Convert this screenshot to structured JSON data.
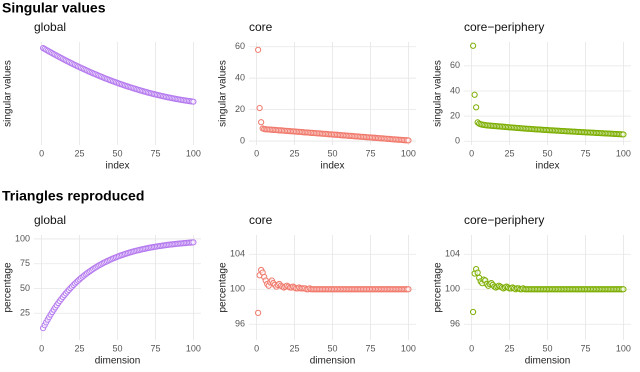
{
  "headings": [
    "Singular values",
    "Triangles reproduced"
  ],
  "chart_data": [
    {
      "type": "scatter",
      "title": "global",
      "xlabel": "index",
      "ylabel": "singular values",
      "color": "#b57aef",
      "grid": true,
      "xlim": [
        -5,
        105
      ],
      "ylim": [
        0,
        170
      ],
      "xticks": [
        0,
        25,
        50,
        75,
        100
      ],
      "x": [
        1,
        2,
        3,
        4,
        5,
        6,
        7,
        8,
        9,
        10,
        11,
        12,
        13,
        14,
        15,
        16,
        17,
        18,
        19,
        20,
        21,
        22,
        23,
        24,
        25,
        26,
        27,
        28,
        29,
        30,
        31,
        32,
        33,
        34,
        35,
        36,
        37,
        38,
        39,
        40,
        41,
        42,
        43,
        44,
        45,
        46,
        47,
        48,
        49,
        50,
        51,
        52,
        53,
        54,
        55,
        56,
        57,
        58,
        59,
        60,
        61,
        62,
        63,
        64,
        65,
        66,
        67,
        68,
        69,
        70,
        71,
        72,
        73,
        74,
        75,
        76,
        77,
        78,
        79,
        80,
        81,
        82,
        83,
        84,
        85,
        86,
        87,
        88,
        89,
        90,
        91,
        92,
        93,
        94,
        95,
        96,
        97,
        98,
        99,
        100
      ],
      "values": [
        160,
        158.6,
        157.1,
        155.7,
        154.3,
        152.9,
        151.5,
        150.1,
        148.8,
        147.4,
        146.1,
        144.7,
        143.4,
        142.1,
        140.8,
        139.5,
        138.2,
        137,
        135.7,
        134.5,
        133.2,
        132,
        130.8,
        129.6,
        128.4,
        127.3,
        126.1,
        125,
        123.8,
        122.7,
        121.5,
        120.4,
        119.3,
        118.2,
        117.2,
        116.1,
        115.1,
        114,
        113,
        112,
        110.9,
        109.9,
        109,
        108,
        107,
        106.1,
        105.1,
        104.2,
        103.3,
        102.4,
        101.5,
        100.6,
        99.8,
        98.9,
        98,
        97.2,
        96.4,
        95.6,
        94.8,
        94,
        93.2,
        92.4,
        91.7,
        90.9,
        90.1,
        89.4,
        88.7,
        88,
        87.3,
        86.6,
        85.9,
        85.3,
        84.6,
        84,
        83.4,
        82.8,
        82.2,
        81.6,
        81,
        80.4,
        79.9,
        79.3,
        78.8,
        78.3,
        77.8,
        77.3,
        76.8,
        76.3,
        75.8,
        75.4,
        75,
        74.5,
        74.1,
        73.7,
        73.3,
        72.9,
        72.6,
        72.2,
        71.9,
        71.5
      ]
    },
    {
      "type": "scatter",
      "title": "core",
      "xlabel": "index",
      "ylabel": "singular values",
      "color": "#f0796c",
      "grid": true,
      "xlim": [
        -5,
        105
      ],
      "ylim": [
        -2.5,
        63
      ],
      "xticks": [
        0,
        25,
        50,
        75,
        100
      ],
      "yticks": [
        0,
        20,
        40,
        60
      ],
      "x": [
        1,
        2,
        3,
        4,
        5,
        6,
        7,
        8,
        9,
        10,
        11,
        12,
        13,
        14,
        15,
        16,
        17,
        18,
        19,
        20,
        21,
        22,
        23,
        24,
        25,
        26,
        27,
        28,
        29,
        30,
        31,
        32,
        33,
        34,
        35,
        36,
        37,
        38,
        39,
        40,
        41,
        42,
        43,
        44,
        45,
        46,
        47,
        48,
        49,
        50,
        51,
        52,
        53,
        54,
        55,
        56,
        57,
        58,
        59,
        60,
        61,
        62,
        63,
        64,
        65,
        66,
        67,
        68,
        69,
        70,
        71,
        72,
        73,
        74,
        75,
        76,
        77,
        78,
        79,
        80,
        81,
        82,
        83,
        84,
        85,
        86,
        87,
        88,
        89,
        90,
        91,
        92,
        93,
        94,
        95,
        96,
        97,
        98,
        99,
        100
      ],
      "values": [
        58,
        21,
        12,
        8,
        7.6,
        7.5,
        7.4,
        7.4,
        7.3,
        7.2,
        7.1,
        7.1,
        7.0,
        6.9,
        6.8,
        6.8,
        6.7,
        6.6,
        6.5,
        6.5,
        6.4,
        6.3,
        6.2,
        6.2,
        6.1,
        6.0,
        5.9,
        5.9,
        5.8,
        5.7,
        5.6,
        5.5,
        5.5,
        5.4,
        5.3,
        5.2,
        5.2,
        5.1,
        5.0,
        4.9,
        4.9,
        4.8,
        4.7,
        4.6,
        4.6,
        4.5,
        4.4,
        4.3,
        4.3,
        4.2,
        4.1,
        4.0,
        4.0,
        3.9,
        3.8,
        3.7,
        3.6,
        3.6,
        3.5,
        3.4,
        3.3,
        3.3,
        3.2,
        3.1,
        3.0,
        3.0,
        2.9,
        2.8,
        2.7,
        2.7,
        2.6,
        2.5,
        2.4,
        2.4,
        2.3,
        2.2,
        2.1,
        2.1,
        2.0,
        1.9,
        1.8,
        1.7,
        1.7,
        1.6,
        1.5,
        1.4,
        1.4,
        1.3,
        1.2,
        1.1,
        1.1,
        1.0,
        0.9,
        0.8,
        0.8,
        0.7,
        0.6,
        0.5,
        0.5,
        0.4
      ]
    },
    {
      "type": "scatter",
      "title": "core−periphery",
      "xlabel": "index",
      "ylabel": "singular values",
      "color": "#7cae00",
      "grid": true,
      "xlim": [
        -5,
        105
      ],
      "ylim": [
        -3,
        79
      ],
      "xticks": [
        0,
        25,
        50,
        75,
        100
      ],
      "yticks": [
        0,
        20,
        40,
        60
      ],
      "x": [
        1,
        2,
        3,
        4,
        5,
        6,
        7,
        8,
        9,
        10,
        11,
        12,
        13,
        14,
        15,
        16,
        17,
        18,
        19,
        20,
        21,
        22,
        23,
        24,
        25,
        26,
        27,
        28,
        29,
        30,
        31,
        32,
        33,
        34,
        35,
        36,
        37,
        38,
        39,
        40,
        41,
        42,
        43,
        44,
        45,
        46,
        47,
        48,
        49,
        50,
        51,
        52,
        53,
        54,
        55,
        56,
        57,
        58,
        59,
        60,
        61,
        62,
        63,
        64,
        65,
        66,
        67,
        68,
        69,
        70,
        71,
        72,
        73,
        74,
        75,
        76,
        77,
        78,
        79,
        80,
        81,
        82,
        83,
        84,
        85,
        86,
        87,
        88,
        89,
        90,
        91,
        92,
        93,
        94,
        95,
        96,
        97,
        98,
        99,
        100
      ],
      "values": [
        76,
        37,
        27,
        15,
        14,
        13.5,
        13.2,
        13.0,
        12.8,
        12.6,
        12.5,
        12.4,
        12.3,
        12.2,
        12.1,
        12.0,
        11.9,
        11.8,
        11.7,
        11.6,
        11.5,
        11.4,
        11.3,
        11.2,
        11.1,
        11.0,
        10.9,
        10.8,
        10.7,
        10.6,
        10.5,
        10.4,
        10.3,
        10.2,
        10.1,
        10.0,
        9.9,
        9.9,
        9.8,
        9.7,
        9.6,
        9.5,
        9.4,
        9.4,
        9.3,
        9.2,
        9.1,
        9.0,
        9.0,
        8.9,
        8.8,
        8.7,
        8.7,
        8.6,
        8.5,
        8.4,
        8.4,
        8.3,
        8.2,
        8.1,
        8.1,
        8.0,
        7.9,
        7.9,
        7.8,
        7.7,
        7.6,
        7.6,
        7.5,
        7.4,
        7.4,
        7.3,
        7.2,
        7.2,
        7.1,
        7.0,
        7.0,
        6.9,
        6.8,
        6.8,
        6.7,
        6.6,
        6.6,
        6.5,
        6.4,
        6.4,
        6.3,
        6.2,
        6.2,
        6.1,
        6.0,
        6.0,
        5.9,
        5.8,
        5.8,
        5.7,
        5.6,
        5.6,
        5.5,
        5.4
      ]
    },
    {
      "type": "scatter",
      "title": "global",
      "xlabel": "dimension",
      "ylabel": "percentage",
      "color": "#b57aef",
      "grid": true,
      "xlim": [
        -5,
        105
      ],
      "ylim": [
        -2,
        104
      ],
      "xticks": [
        0,
        25,
        50,
        75,
        100
      ],
      "yticks": [
        25,
        50,
        75,
        100
      ],
      "x": [
        1,
        2,
        3,
        4,
        5,
        6,
        7,
        8,
        9,
        10,
        11,
        12,
        13,
        14,
        15,
        16,
        17,
        18,
        19,
        20,
        21,
        22,
        23,
        24,
        25,
        26,
        27,
        28,
        29,
        30,
        31,
        32,
        33,
        34,
        35,
        36,
        37,
        38,
        39,
        40,
        41,
        42,
        43,
        44,
        45,
        46,
        47,
        48,
        49,
        50,
        51,
        52,
        53,
        54,
        55,
        56,
        57,
        58,
        59,
        60,
        61,
        62,
        63,
        64,
        65,
        66,
        67,
        68,
        69,
        70,
        71,
        72,
        73,
        74,
        75,
        76,
        77,
        78,
        79,
        80,
        81,
        82,
        83,
        84,
        85,
        86,
        87,
        88,
        89,
        90,
        91,
        92,
        93,
        94,
        95,
        96,
        97,
        98,
        99,
        100
      ],
      "values": [
        10,
        12.9,
        15.8,
        18.5,
        21.1,
        23.7,
        26.2,
        28.6,
        30.9,
        33.1,
        35.3,
        37.4,
        39.4,
        41.4,
        43.3,
        45.1,
        46.9,
        48.6,
        50.3,
        51.9,
        53.5,
        55.0,
        56.5,
        57.9,
        59.2,
        60.6,
        61.8,
        63.1,
        64.3,
        65.4,
        66.6,
        67.6,
        68.7,
        69.7,
        70.7,
        71.6,
        72.6,
        73.5,
        74.3,
        75.2,
        76.0,
        76.7,
        77.5,
        78.2,
        78.9,
        79.6,
        80.3,
        80.9,
        81.5,
        82.1,
        82.7,
        83.3,
        83.8,
        84.3,
        84.9,
        85.3,
        85.8,
        86.3,
        86.7,
        87.2,
        87.6,
        88.0,
        88.4,
        88.7,
        89.1,
        89.5,
        89.8,
        90.1,
        90.5,
        90.8,
        91.1,
        91.4,
        91.6,
        91.9,
        92.2,
        92.4,
        92.7,
        92.9,
        93.1,
        93.4,
        93.6,
        93.8,
        94.0,
        94.2,
        94.4,
        94.5,
        94.7,
        94.9,
        95.1,
        95.2,
        95.4,
        95.5,
        95.7,
        95.8,
        95.9,
        96.1,
        96.2,
        96.3,
        96.4,
        96.6
      ]
    },
    {
      "type": "scatter",
      "title": "core",
      "xlabel": "dimension",
      "ylabel": "percentage",
      "color": "#f0796c",
      "grid": true,
      "xlim": [
        -5,
        105
      ],
      "ylim": [
        94.2,
        106.2
      ],
      "xticks": [
        0,
        25,
        50,
        75,
        100
      ],
      "yticks": [
        96,
        100,
        104
      ],
      "x": [
        1,
        2,
        3,
        4,
        5,
        6,
        7,
        8,
        9,
        10,
        11,
        12,
        13,
        14,
        15,
        16,
        17,
        18,
        19,
        20,
        21,
        22,
        23,
        24,
        25,
        26,
        27,
        28,
        29,
        30,
        31,
        32,
        33,
        34,
        35,
        36,
        37,
        38,
        39,
        40,
        41,
        42,
        43,
        44,
        45,
        46,
        47,
        48,
        49,
        50,
        51,
        52,
        53,
        54,
        55,
        56,
        57,
        58,
        59,
        60,
        61,
        62,
        63,
        64,
        65,
        66,
        67,
        68,
        69,
        70,
        71,
        72,
        73,
        74,
        75,
        76,
        77,
        78,
        79,
        80,
        81,
        82,
        83,
        84,
        85,
        86,
        87,
        88,
        89,
        90,
        91,
        92,
        93,
        94,
        95,
        96,
        97,
        98,
        99,
        100
      ],
      "values": [
        97.3,
        101.6,
        102.2,
        101.9,
        101.4,
        101,
        100.6,
        100.4,
        100.8,
        101,
        100.7,
        100.5,
        100.3,
        100.5,
        100.6,
        100.4,
        100.3,
        100.2,
        100.3,
        100.4,
        100.3,
        100.2,
        100.2,
        100.3,
        100.2,
        100.1,
        100.1,
        100.2,
        100.1,
        100.1,
        100.1,
        100.1,
        100,
        100,
        100.1,
        100,
        100,
        100,
        100,
        100,
        100,
        100,
        100,
        100,
        100,
        100,
        100,
        100,
        100,
        100,
        100,
        100,
        100,
        100,
        100,
        100,
        100,
        100,
        100,
        100,
        100,
        100,
        100,
        100,
        100,
        100,
        100,
        100,
        100,
        100,
        100,
        100,
        100,
        100,
        100,
        100,
        100,
        100,
        100,
        100,
        100,
        100,
        100,
        100,
        100,
        100,
        100,
        100,
        100,
        100,
        100,
        100,
        100,
        100,
        100,
        100,
        100,
        100,
        100,
        100
      ]
    },
    {
      "type": "scatter",
      "title": "core−periphery",
      "xlabel": "dimension",
      "ylabel": "percentage",
      "color": "#7cae00",
      "grid": true,
      "xlim": [
        -5,
        105
      ],
      "ylim": [
        94.2,
        106.2
      ],
      "xticks": [
        0,
        25,
        50,
        75,
        100
      ],
      "yticks": [
        96,
        100,
        104
      ],
      "x": [
        1,
        2,
        3,
        4,
        5,
        6,
        7,
        8,
        9,
        10,
        11,
        12,
        13,
        14,
        15,
        16,
        17,
        18,
        19,
        20,
        21,
        22,
        23,
        24,
        25,
        26,
        27,
        28,
        29,
        30,
        31,
        32,
        33,
        34,
        35,
        36,
        37,
        38,
        39,
        40,
        41,
        42,
        43,
        44,
        45,
        46,
        47,
        48,
        49,
        50,
        51,
        52,
        53,
        54,
        55,
        56,
        57,
        58,
        59,
        60,
        61,
        62,
        63,
        64,
        65,
        66,
        67,
        68,
        69,
        70,
        71,
        72,
        73,
        74,
        75,
        76,
        77,
        78,
        79,
        80,
        81,
        82,
        83,
        84,
        85,
        86,
        87,
        88,
        89,
        90,
        91,
        92,
        93,
        94,
        95,
        96,
        97,
        98,
        99,
        100
      ],
      "values": [
        97.4,
        101.8,
        102.3,
        101.9,
        101.3,
        100.9,
        100.7,
        101.1,
        101,
        100.6,
        100.4,
        100.6,
        100.7,
        100.5,
        100.3,
        100.2,
        100.3,
        100.4,
        100.3,
        100.2,
        100.1,
        100.2,
        100.3,
        100.2,
        100.1,
        100.1,
        100.2,
        100.1,
        100,
        100.1,
        100.1,
        100,
        100,
        100.1,
        100,
        100,
        100,
        100,
        100,
        100,
        100,
        100,
        100,
        100,
        100,
        100,
        100,
        100,
        100,
        100,
        100,
        100,
        100,
        100,
        100,
        100,
        100,
        100,
        100,
        100,
        100,
        100,
        100,
        100,
        100,
        100,
        100,
        100,
        100,
        100,
        100,
        100,
        100,
        100,
        100,
        100,
        100,
        100,
        100,
        100,
        100,
        100,
        100,
        100,
        100,
        100,
        100,
        100,
        100,
        100,
        100,
        100,
        100,
        100,
        100,
        100,
        100,
        100,
        100,
        100
      ]
    }
  ]
}
